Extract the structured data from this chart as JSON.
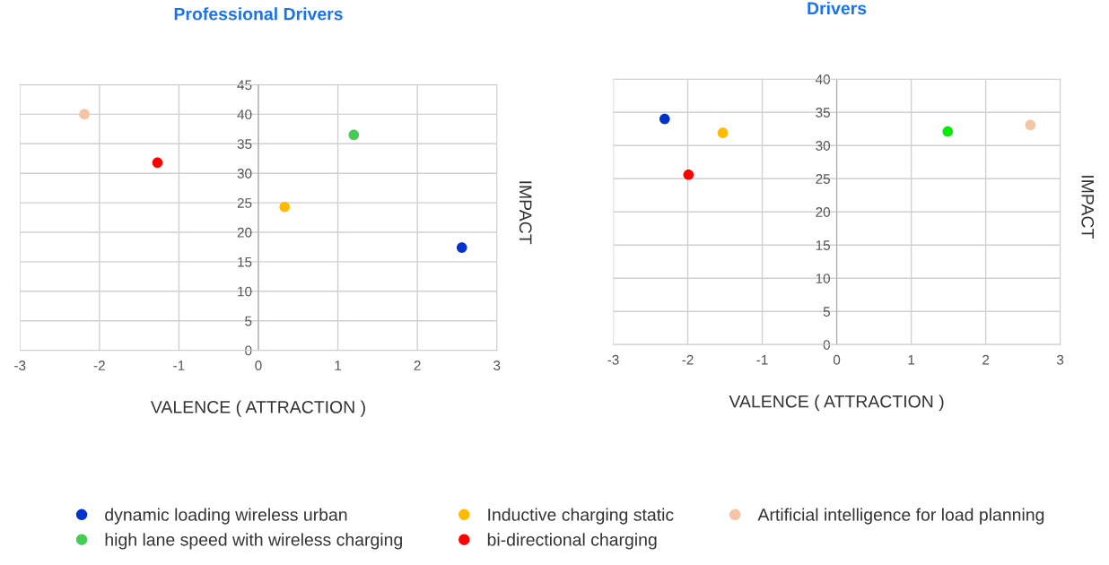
{
  "chart_data": [
    {
      "type": "scatter",
      "title": "Professional Drivers",
      "xlabel": "VALENCE ( ATTRACTION )",
      "ylabel": "IMPACT",
      "xlim": [
        -3,
        3
      ],
      "ylim": [
        0,
        45
      ],
      "xticks": [
        -3,
        -2,
        -1,
        0,
        1,
        2,
        3
      ],
      "yticks": [
        0,
        5,
        10,
        15,
        20,
        25,
        30,
        35,
        40,
        45
      ],
      "grid": true,
      "marker": "circle",
      "legend": "bottom",
      "series": [
        {
          "name": "dynamic loading wireless urban",
          "color": "#0033cc",
          "x": [
            2.56
          ],
          "values": [
            17.4
          ]
        },
        {
          "name": "high lane speed with wireless charging",
          "color": "#44cc55",
          "x": [
            1.2
          ],
          "values": [
            36.5
          ]
        },
        {
          "name": "Inductive charging static",
          "color": "#ffbb00",
          "x": [
            0.33
          ],
          "values": [
            24.3
          ]
        },
        {
          "name": "bi-directional charging",
          "color": "#ff0000",
          "x": [
            -1.27
          ],
          "values": [
            31.8
          ]
        },
        {
          "name": "Artificial intelligence for load planning",
          "color": "#f4c4a4",
          "x": [
            -2.19
          ],
          "values": [
            40
          ]
        }
      ]
    },
    {
      "type": "scatter",
      "title": "Drivers",
      "xlabel": "VALENCE ( ATTRACTION )",
      "ylabel": "IMPACT",
      "xlim": [
        -3,
        3
      ],
      "ylim": [
        0,
        40
      ],
      "xticks": [
        -3,
        -2,
        -1,
        0,
        1,
        2,
        3
      ],
      "yticks": [
        0,
        5,
        10,
        15,
        20,
        25,
        30,
        35,
        40
      ],
      "grid": true,
      "marker": "circle",
      "series": [
        {
          "color": "#0033cc",
          "x": [
            -2.31
          ],
          "values": [
            34
          ]
        },
        {
          "color": "#00ee00",
          "x": [
            1.49
          ],
          "values": [
            32.1
          ]
        },
        {
          "color": "#ffbb00",
          "x": [
            -1.53
          ],
          "values": [
            31.9
          ]
        },
        {
          "color": "#ff0000",
          "x": [
            -1.99
          ],
          "values": [
            25.6
          ]
        },
        {
          "color": "#f4c4a4",
          "x": [
            2.6
          ],
          "values": [
            33.1
          ]
        }
      ]
    }
  ]
}
